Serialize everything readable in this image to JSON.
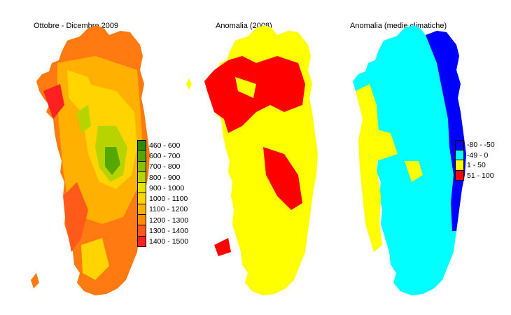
{
  "maps": [
    {
      "title": "Ottobre - Dicembre 2009",
      "legend": [
        {
          "label": "460 - 600",
          "color": "#2e8b00"
        },
        {
          "label": "600 - 700",
          "color": "#55a800"
        },
        {
          "label": "700 - 800",
          "color": "#88c000"
        },
        {
          "label": "800 - 900",
          "color": "#b8d400"
        },
        {
          "label": "900 - 1000",
          "color": "#e6e600"
        },
        {
          "label": "1000 - 1100",
          "color": "#ffd400"
        },
        {
          "label": "1100 - 1200",
          "color": "#ffb000"
        },
        {
          "label": "1200 - 1300",
          "color": "#ff8c00"
        },
        {
          "label": "1300 - 1400",
          "color": "#ff5a1a"
        },
        {
          "label": "1400 - 1500",
          "color": "#ff2020"
        }
      ]
    },
    {
      "title": "Anomalia (2008)",
      "colors": [
        "#ffff00",
        "#ff0000"
      ]
    },
    {
      "title": "Anomalia (medie climatiche)",
      "legend": [
        {
          "label": "-80 - -50",
          "color": "#0000ff"
        },
        {
          "label": "-49 - 0",
          "color": "#00ffff"
        },
        {
          "label": "1 - 50",
          "color": "#ffff00"
        },
        {
          "label": "51 - 100",
          "color": "#ff0000"
        }
      ]
    }
  ]
}
